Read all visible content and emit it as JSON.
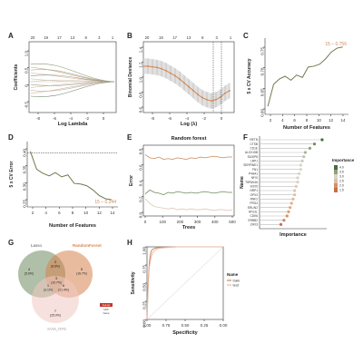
{
  "panels": {
    "a": "A",
    "b": "B",
    "c": "C",
    "d": "D",
    "e": "E",
    "f": "F",
    "g": "G",
    "h": "H"
  },
  "chart_data": [
    {
      "panel": "A",
      "type": "line",
      "xlabel": "Log Lambda",
      "ylabel": "Coefficients",
      "xticks": [
        "-8",
        "-6",
        "-4",
        "-2",
        "0"
      ],
      "top_ticks": [
        "20",
        "19",
        "17",
        "13",
        "8",
        "3",
        "1"
      ],
      "yticks": [
        "-0.5",
        "0",
        "0.5",
        "1.0"
      ]
    },
    {
      "panel": "B",
      "type": "line",
      "xlabel": "Log (λ)",
      "ylabel": "Binomial Deviance",
      "xticks": [
        "-8",
        "-6",
        "-4",
        "-2",
        "0"
      ],
      "top_ticks": [
        "20",
        "19",
        "17",
        "13",
        "8",
        "3",
        "1"
      ],
      "yticks": [
        "0.6",
        "0.8",
        "1.0",
        "1.2",
        "1.4"
      ],
      "x": [
        -9,
        -8.5,
        -8,
        -7.5,
        -7,
        -6.5,
        -6,
        -5.5,
        -5,
        -4.5,
        -4,
        -3.5,
        -3,
        -2.5,
        -2,
        -1.5,
        -1,
        -0.5,
        0,
        0.5
      ],
      "y": [
        1.12,
        1.12,
        1.11,
        1.1,
        1.08,
        1.05,
        1.01,
        0.97,
        0.92,
        0.86,
        0.8,
        0.74,
        0.68,
        0.63,
        0.6,
        0.58,
        0.6,
        0.64,
        0.7,
        0.74
      ],
      "vlines": [
        -1.3,
        -0.4
      ],
      "xlim": [
        -9,
        1
      ],
      "ylim": [
        0.4,
        1.5
      ]
    },
    {
      "panel": "C",
      "type": "line",
      "xlabel": "Number of Features",
      "ylabel": "5 x CV Accuracy",
      "xticks": [
        "2",
        "4",
        "6",
        "8",
        "10",
        "12",
        "14"
      ],
      "yticks": [
        "0.60",
        "0.65",
        "0.70",
        "0.75"
      ],
      "x": [
        1,
        2,
        3,
        4,
        5,
        6,
        7,
        8,
        9,
        10,
        11,
        12,
        13,
        14
      ],
      "y": [
        0.6,
        0.655,
        0.668,
        0.675,
        0.665,
        0.678,
        0.672,
        0.698,
        0.7,
        0.705,
        0.718,
        0.735,
        0.745,
        0.748
      ],
      "annotation": "15 – 0.756",
      "xlim": [
        0.5,
        15
      ],
      "ylim": [
        0.58,
        0.77
      ]
    },
    {
      "panel": "D",
      "type": "line",
      "xlabel": "Number of Features",
      "ylabel": "5 x CV Error",
      "xticks": [
        "2",
        "4",
        "6",
        "8",
        "10",
        "12",
        "14"
      ],
      "yticks": [
        "0.25",
        "0.30",
        "0.35",
        "0.40"
      ],
      "x": [
        1,
        2,
        3,
        4,
        5,
        6,
        7,
        8,
        9,
        10,
        11,
        12,
        13,
        14
      ],
      "y": [
        0.4,
        0.345,
        0.333,
        0.325,
        0.335,
        0.322,
        0.328,
        0.302,
        0.3,
        0.295,
        0.282,
        0.265,
        0.255,
        0.252
      ],
      "hline": 0.395,
      "annotation": "15 – 0.244",
      "xlim": [
        0.5,
        15
      ],
      "ylim": [
        0.23,
        0.43
      ]
    },
    {
      "panel": "E",
      "type": "line",
      "title": "Random forest",
      "xlabel": "Trees",
      "ylabel": "Error",
      "xticks": [
        "0",
        "100",
        "200",
        "300",
        "400",
        "500"
      ],
      "yticks": [
        "0.0",
        "0.2",
        "0.4",
        "0.6",
        "0.8"
      ],
      "series": [
        {
          "color": "#c98a5c",
          "values": [
            0.78,
            0.74,
            0.73,
            0.75,
            0.72,
            0.73,
            0.72,
            0.74,
            0.73,
            0.72,
            0.74,
            0.73,
            0.75,
            0.74,
            0.75,
            0.76,
            0.75,
            0.74,
            0.75,
            0.75
          ]
        },
        {
          "color": "#6f8a5f",
          "values": [
            0.28,
            0.33,
            0.3,
            0.29,
            0.27,
            0.3,
            0.29,
            0.31,
            0.3,
            0.29,
            0.3,
            0.29,
            0.3,
            0.31,
            0.3,
            0.29,
            0.3,
            0.31,
            0.3,
            0.3
          ]
        },
        {
          "color": "#e0c8b8",
          "values": [
            0.22,
            0.16,
            0.12,
            0.11,
            0.1,
            0.09,
            0.1,
            0.08,
            0.09,
            0.08,
            0.09,
            0.08,
            0.08,
            0.09,
            0.08,
            0.07,
            0.08,
            0.08,
            0.07,
            0.08
          ]
        }
      ],
      "xlim": [
        0,
        500
      ],
      "ylim": [
        0,
        0.9
      ]
    },
    {
      "panel": "F",
      "type": "scatter",
      "xlabel": "Importance",
      "ylabel": "Name",
      "legend_title": "Importance",
      "legend_ticks": [
        "4.0",
        "3.5",
        "3.0",
        "2.5",
        "2.0",
        "1.5"
      ],
      "categories": [
        "RETN",
        "CTSB",
        "CD1E",
        "ALOX15B",
        "S100P8",
        "LRP1",
        "SERPINE1",
        "FN1",
        "P4HA1",
        "NFIX",
        "TSPAN16",
        "SOX5",
        "NRP1",
        "GPX3",
        "RNF2",
        "PRG4",
        "ERLIN2",
        "AFG1L",
        "CDK6",
        "ERBB2",
        "ZHX3"
      ],
      "values": [
        4.1,
        3.6,
        3.3,
        3.0,
        2.9,
        2.8,
        2.7,
        2.7,
        2.6,
        2.5,
        2.5,
        2.4,
        2.3,
        2.3,
        2.2,
        2.1,
        2.0,
        1.9,
        1.8,
        1.6,
        1.4
      ],
      "colors": [
        "#4a6a44",
        "#6f8a5f",
        "#8da17a",
        "#a8b695",
        "#b9c4aa",
        "#c9cfbe",
        "#d6d6ca",
        "#d9d6cf",
        "#dcd2c9",
        "#ddcfc3",
        "#deccbd",
        "#dfc8b6",
        "#e0c3ad",
        "#e1bea5",
        "#e2b99b",
        "#e1b091",
        "#dfa784",
        "#dc9c76",
        "#d68f67",
        "#cf805a",
        "#c4704d"
      ],
      "xlim": [
        0,
        4.4
      ]
    },
    {
      "panel": "G",
      "type": "venn",
      "sets": [
        {
          "name": "Lasso",
          "color": "#6f8a5f"
        },
        {
          "name": "RandomForest",
          "color": "#d7844f"
        },
        {
          "name": "SVM_RFE",
          "color": "#f0c8c2"
        }
      ],
      "regions": [
        {
          "count": "4",
          "pct": "(5.6%)"
        },
        {
          "count": "3",
          "pct": "(8.8%)"
        },
        {
          "count": "5",
          "pct": "(16.7%)"
        },
        {
          "count": "1",
          "pct": "(3.1%)"
        },
        {
          "count": "6",
          "pct": "(21.4%)"
        },
        {
          "count": "3",
          "pct": "(10.7%)"
        },
        {
          "count": "7",
          "pct": "(25.0%)"
        }
      ],
      "badge": [
        "hsa-let",
        "Hub",
        "Gene"
      ]
    },
    {
      "panel": "H",
      "type": "line",
      "xlabel": "Specificity",
      "ylabel": "Sensitivity",
      "xticks": [
        "1.00",
        "0.75",
        "0.50",
        "0.25",
        "0.00"
      ],
      "yticks": [
        "0.00",
        "0.25",
        "0.50",
        "0.75",
        "1.00"
      ],
      "legend_title": "Name",
      "series": [
        {
          "name": "train",
          "color": "#c98a5c",
          "x": [
            1.0,
            0.99,
            0.98,
            0.97,
            0.96,
            0.95,
            0.94,
            0.92,
            0.9,
            0.85,
            0.7,
            0.5,
            0.3,
            0.1,
            0.0
          ],
          "y": [
            0.0,
            0.35,
            0.6,
            0.78,
            0.86,
            0.92,
            0.95,
            0.97,
            0.98,
            0.99,
            1.0,
            1.0,
            1.0,
            1.0,
            1.0
          ]
        },
        {
          "name": "test",
          "color": "#e7b8a6",
          "x": [
            1.0,
            0.99,
            0.98,
            0.97,
            0.95,
            0.93,
            0.9,
            0.85,
            0.75,
            0.6,
            0.4,
            0.2,
            0.0
          ],
          "y": [
            0.0,
            0.3,
            0.55,
            0.72,
            0.84,
            0.91,
            0.95,
            0.98,
            0.99,
            1.0,
            1.0,
            1.0,
            1.0
          ]
        }
      ],
      "xlim": [
        1,
        0
      ],
      "ylim": [
        0,
        1
      ]
    }
  ]
}
